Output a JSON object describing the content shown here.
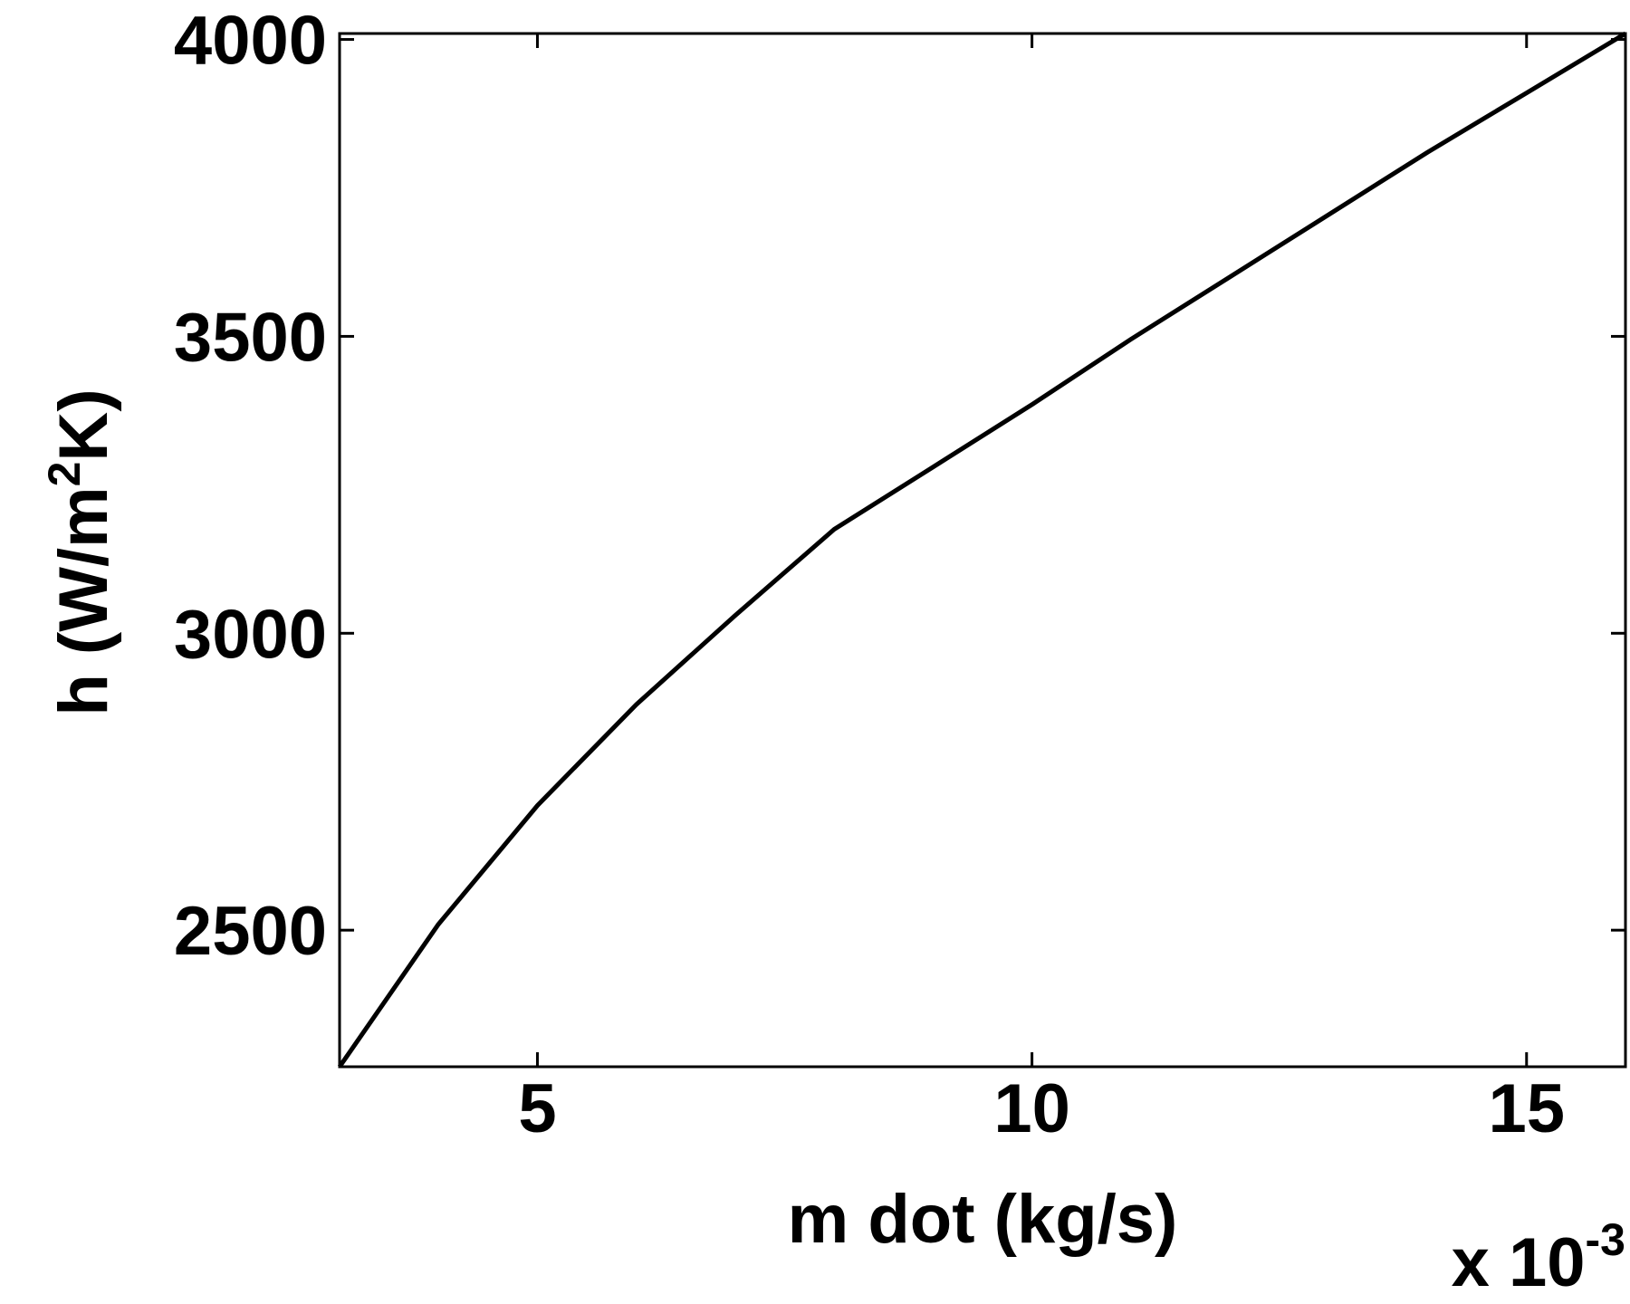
{
  "chart_data": {
    "type": "line",
    "title": "",
    "xlabel": "m dot (kg/s)",
    "ylabel_parts": {
      "pre": "h (W/m",
      "sup": "2",
      "post": "K)"
    },
    "x_multiplier": {
      "base": "x 10",
      "exp": "-3"
    },
    "xlim": [
      3,
      16
    ],
    "ylim": [
      2270,
      4010
    ],
    "xticks": [
      5,
      10,
      15
    ],
    "yticks": [
      2500,
      3000,
      3500,
      4000
    ],
    "grid": false,
    "line_color": "#000000",
    "series": [
      {
        "x": [
          3,
          4,
          5,
          6,
          7,
          8,
          9,
          10,
          11,
          12,
          13,
          14,
          15,
          16
        ],
        "values": [
          2270,
          2510,
          2710,
          2880,
          3030,
          3175,
          3280,
          3385,
          3495,
          3600,
          3705,
          3810,
          3910,
          4010
        ]
      }
    ]
  }
}
